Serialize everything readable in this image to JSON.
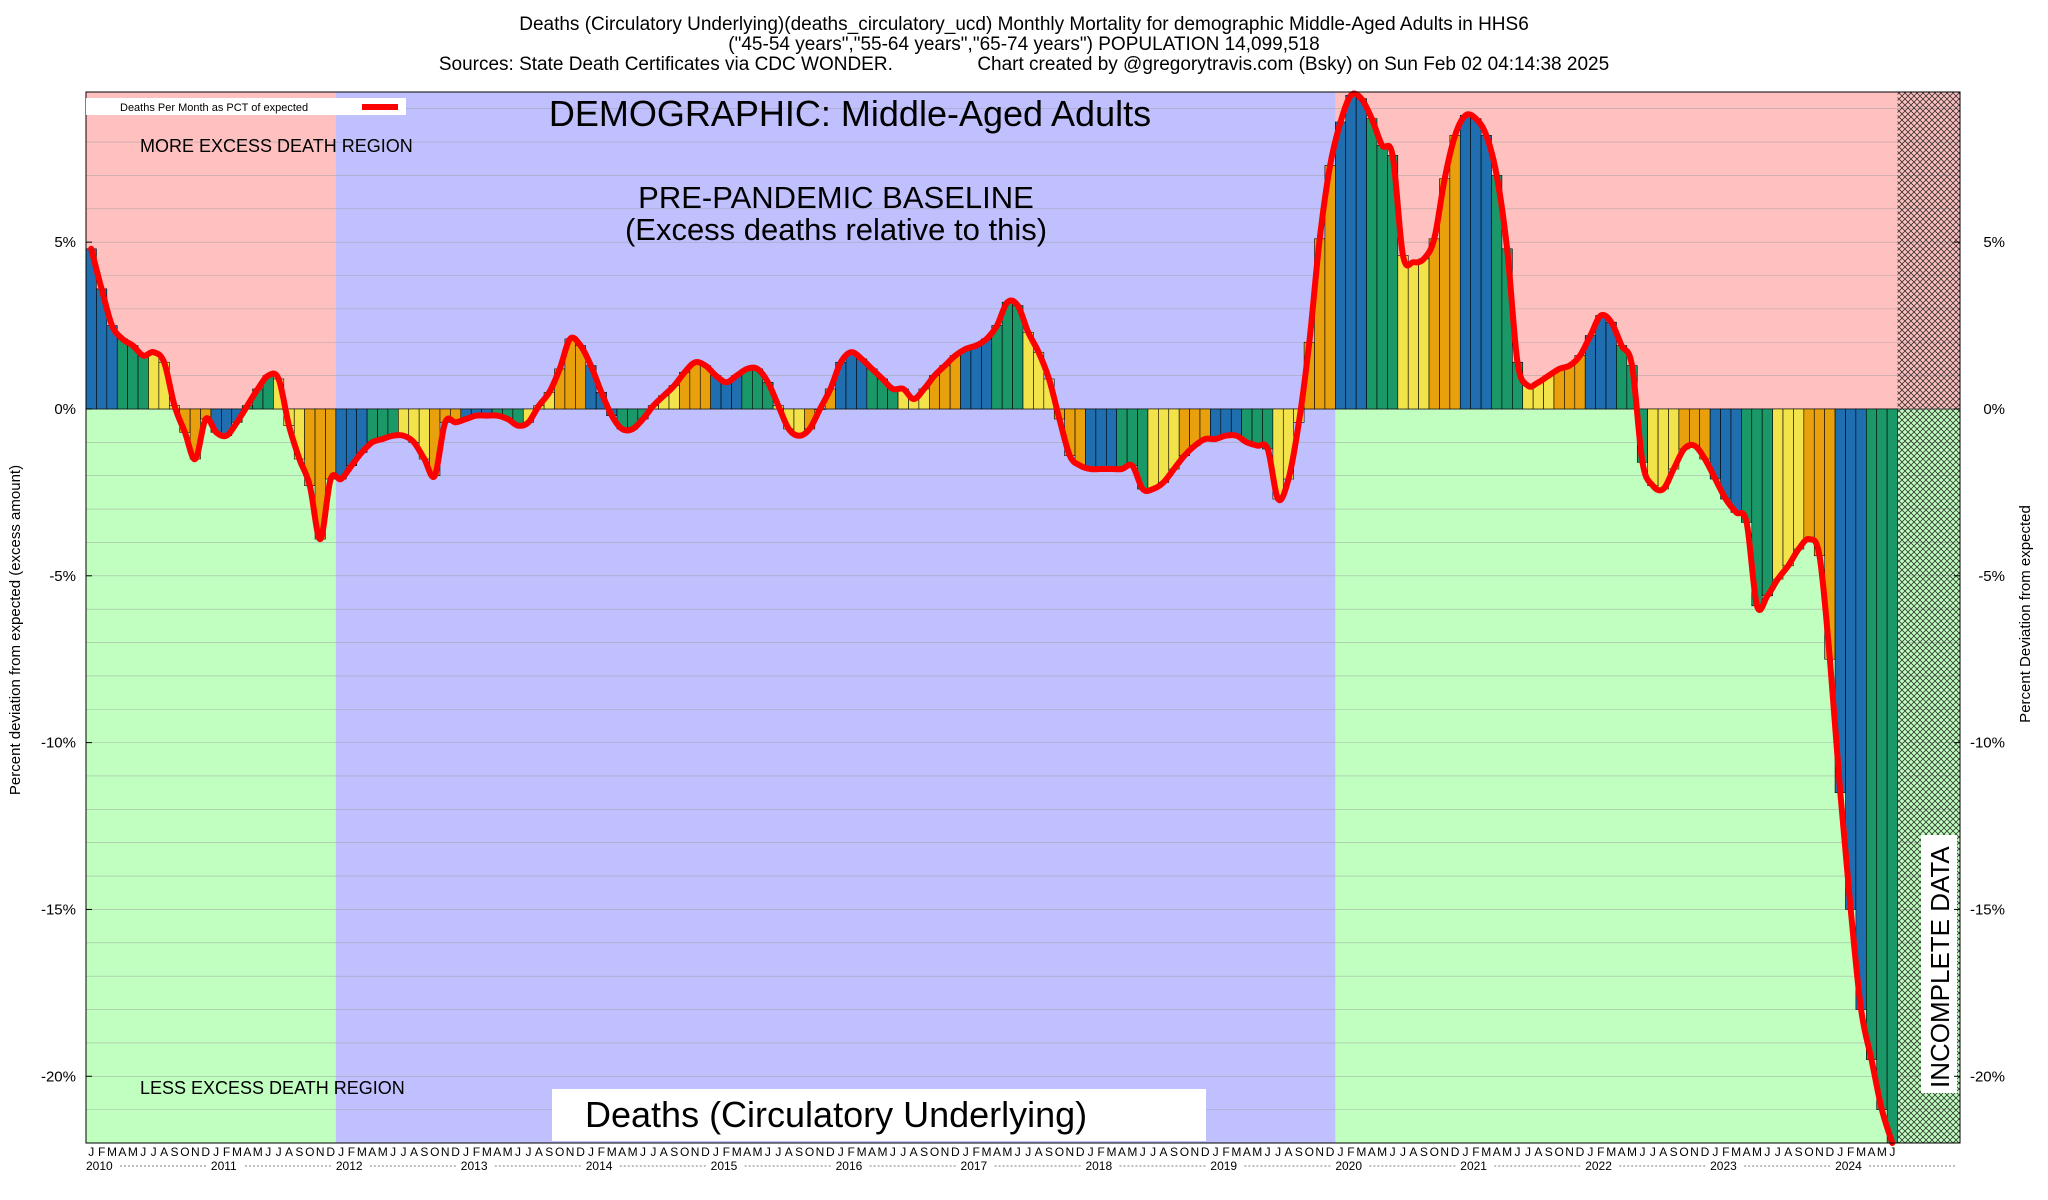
{
  "chart_data": {
    "type": "bar",
    "title_lines": [
      "Deaths (Circulatory Underlying)(deaths_circulatory_ucd) Monthly Mortality for demographic Middle-Aged Adults in HHS6",
      "(\"45-54 years\",\"55-64 years\",\"65-74 years\") POPULATION 14,099,518",
      "Sources: State Death Certificates via CDC WONDER.                Chart created by @gregorytravis.com (Bsky) on Sun Feb 02 04:14:38 2025"
    ],
    "ylabel_left": "Percent deviation from expected (excess amount)",
    "ylabel_right": "Percent Deviation from expected",
    "ylim": [
      -22,
      9.5
    ],
    "yticks": [
      5,
      0,
      -5,
      -10,
      -15,
      -20
    ],
    "ytick_labels": [
      "5%",
      "0%",
      "-5%",
      "-10%",
      "-15%",
      "-20%"
    ],
    "legend": {
      "label": "Deaths Per Month as PCT of expected",
      "position": "top-left",
      "color": "#ff0000"
    },
    "annotations": {
      "demographic": "DEMOGRAPHIC: Middle-Aged Adults",
      "baseline_line1": "PRE-PANDEMIC BASELINE",
      "baseline_line2": "(Excess deaths relative to this)",
      "more_region": "MORE EXCESS DEATH REGION",
      "less_region": "LESS EXCESS DEATH REGION",
      "bottom_title": "Deaths (Circulatory Underlying)",
      "incomplete": "INCOMPLETE DATA"
    },
    "month_letters": [
      "J",
      "F",
      "M",
      "A",
      "M",
      "J",
      "J",
      "A",
      "S",
      "O",
      "N",
      "D"
    ],
    "years": [
      "2010",
      "2011",
      "2012",
      "2013",
      "2014",
      "2015",
      "2016",
      "2017",
      "2018",
      "2019",
      "2020",
      "2021",
      "2022",
      "2023",
      "2024"
    ],
    "x_start": "2010-01",
    "baseline_period": [
      "2012-01",
      "2019-12"
    ],
    "incomplete_period": [
      "2024-07",
      "2024-12"
    ],
    "season_colors": [
      "#1f6fb0",
      "#1a9868",
      "#f2e34a",
      "#e8a10c"
    ],
    "line_color": "#ff0000",
    "region_colors": {
      "more": "#ffc0c0",
      "less": "#c0ffc0",
      "baseline": "#c0c0ff"
    },
    "values": [
      4.8,
      3.6,
      2.5,
      2.1,
      1.9,
      1.6,
      1.7,
      1.4,
      0.1,
      -0.7,
      -1.5,
      -0.3,
      -0.7,
      -0.8,
      -0.4,
      0.1,
      0.6,
      1.0,
      0.9,
      -0.5,
      -1.5,
      -2.3,
      -3.9,
      -2.1,
      -2.1,
      -1.7,
      -1.3,
      -1.0,
      -0.9,
      -0.8,
      -0.8,
      -1.0,
      -1.5,
      -2.0,
      -0.4,
      -0.4,
      -0.3,
      -0.2,
      -0.2,
      -0.2,
      -0.3,
      -0.5,
      -0.4,
      0.1,
      0.5,
      1.2,
      2.1,
      1.9,
      1.3,
      0.5,
      -0.2,
      -0.6,
      -0.6,
      -0.3,
      0.1,
      0.4,
      0.7,
      1.1,
      1.4,
      1.3,
      1.0,
      0.8,
      1.0,
      1.2,
      1.2,
      0.8,
      0.1,
      -0.6,
      -0.8,
      -0.6,
      0.0,
      0.6,
      1.4,
      1.7,
      1.5,
      1.2,
      0.9,
      0.6,
      0.6,
      0.3,
      0.6,
      1.0,
      1.3,
      1.6,
      1.8,
      1.9,
      2.1,
      2.5,
      3.2,
      3.1,
      2.3,
      1.7,
      0.9,
      -0.3,
      -1.4,
      -1.7,
      -1.8,
      -1.8,
      -1.8,
      -1.8,
      -1.7,
      -2.4,
      -2.4,
      -2.2,
      -1.8,
      -1.4,
      -1.1,
      -0.9,
      -0.9,
      -0.8,
      -0.8,
      -1.0,
      -1.1,
      -1.2,
      -2.7,
      -2.1,
      -0.4,
      2.0,
      5.1,
      7.3,
      8.6,
      9.4,
      9.3,
      8.7,
      7.9,
      7.6,
      4.6,
      4.4,
      4.5,
      5.1,
      6.9,
      8.2,
      8.8,
      8.7,
      8.2,
      7.0,
      4.8,
      1.4,
      0.7,
      0.8,
      1.0,
      1.2,
      1.3,
      1.6,
      2.2,
      2.8,
      2.6,
      1.9,
      1.3,
      -1.6,
      -2.3,
      -2.4,
      -1.8,
      -1.2,
      -1.1,
      -1.5,
      -2.1,
      -2.7,
      -3.1,
      -3.4,
      -5.9,
      -5.6,
      -5.1,
      -4.7,
      -4.2,
      -3.9,
      -4.4,
      -7.5,
      -11.5,
      -15.0,
      -18.0,
      -19.5,
      -21.0,
      -22.0
    ]
  }
}
